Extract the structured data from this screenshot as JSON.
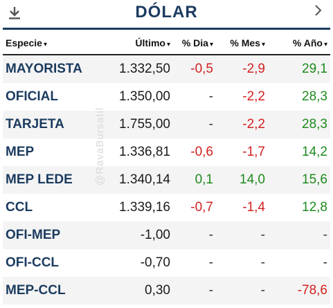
{
  "header": {
    "title": "DÓLAR",
    "download_icon": "download-icon",
    "next_icon": "chevron-right-icon"
  },
  "columns": [
    {
      "label": "Especie",
      "sort": "▾"
    },
    {
      "label": "Último",
      "sort": "▾"
    },
    {
      "label": "% Dia",
      "sort": "▾"
    },
    {
      "label": "% Mes",
      "sort": "▾"
    },
    {
      "label": "% Año",
      "sort": "▾"
    }
  ],
  "rows": [
    {
      "name": "MAYORISTA",
      "last": "1.332,50",
      "day": "-0,5",
      "month": "-2,9",
      "year": "29,1"
    },
    {
      "name": "OFICIAL",
      "last": "1.350,00",
      "day": "-",
      "month": "-2,2",
      "year": "28,3"
    },
    {
      "name": "TARJETA",
      "last": "1.755,00",
      "day": "-",
      "month": "-2,2",
      "year": "28,3"
    },
    {
      "name": "MEP",
      "last": "1.336,81",
      "day": "-0,6",
      "month": "-1,7",
      "year": "14,2"
    },
    {
      "name": "MEP LEDE",
      "last": "1.340,14",
      "day": "0,1",
      "month": "14,0",
      "year": "15,6"
    },
    {
      "name": "CCL",
      "last": "1.339,16",
      "day": "-0,7",
      "month": "-1,4",
      "year": "12,8"
    },
    {
      "name": "OFI-MEP",
      "last": "-1,00",
      "day": "-",
      "month": "-",
      "year": "-"
    },
    {
      "name": "OFI-CCL",
      "last": "-0,70",
      "day": "-",
      "month": "-",
      "year": "-"
    },
    {
      "name": "MEP-CCL",
      "last": "0,30",
      "day": "-",
      "month": "-",
      "year": "-78,6"
    }
  ],
  "watermark": "@RavaBursatil",
  "colors": {
    "title": "#1b3b5f",
    "negative": "#d42020",
    "positive": "#1e8a1e",
    "stripe": "#f4f4f4"
  }
}
